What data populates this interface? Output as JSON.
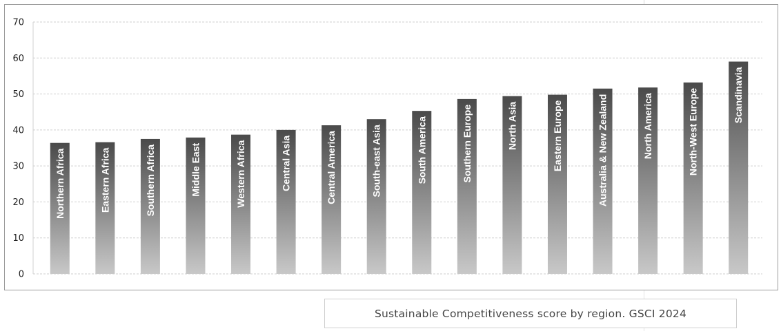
{
  "caption": "Sustainable Competitiveness score by region. GSCI 2024",
  "chart_data": {
    "type": "bar",
    "title": "",
    "xlabel": "",
    "ylabel": "",
    "ylim": [
      0,
      70
    ],
    "yticks": [
      0,
      10,
      20,
      30,
      40,
      50,
      60,
      70
    ],
    "grid": true,
    "bar_gradient": [
      "#4a4a4a",
      "#c8c8c8"
    ],
    "categories": [
      "Northern Africa",
      "Eastern Africa",
      "Southern Africa",
      "Middle East",
      "Western Africa",
      "Central Asia",
      "Central America",
      "South-east Asia",
      "South America",
      "Southern Europe",
      "North Asia",
      "Eastern Europe",
      "Australia & New Zealand",
      "North America",
      "North-West  Europe",
      "Scandinavia"
    ],
    "values": [
      36.4,
      36.6,
      37.5,
      37.9,
      38.7,
      40.0,
      41.3,
      43.0,
      45.3,
      48.6,
      49.4,
      49.8,
      51.5,
      51.8,
      53.2,
      59.0
    ]
  }
}
